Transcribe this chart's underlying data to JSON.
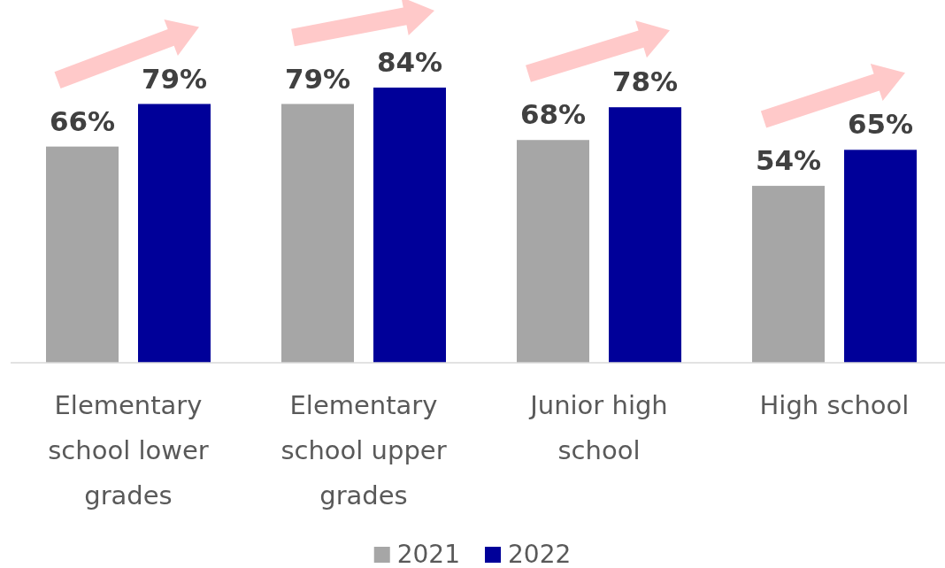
{
  "chart_data": {
    "type": "bar",
    "categories": [
      "Elementary school lower grades",
      "Elementary school upper grades",
      "Junior high school",
      "High school"
    ],
    "series": [
      {
        "name": "2021",
        "color": "#a6a6a6",
        "values": [
          66,
          79,
          68,
          54
        ],
        "value_labels": [
          "66%",
          "79%",
          "68%",
          "54%"
        ]
      },
      {
        "name": "2022",
        "color": "#000099",
        "values": [
          79,
          84,
          78,
          65
        ],
        "value_labels": [
          "79%",
          "84%",
          "78%",
          "65%"
        ]
      }
    ],
    "tick_labels": "x",
    "legend": "bottom"
  }
}
